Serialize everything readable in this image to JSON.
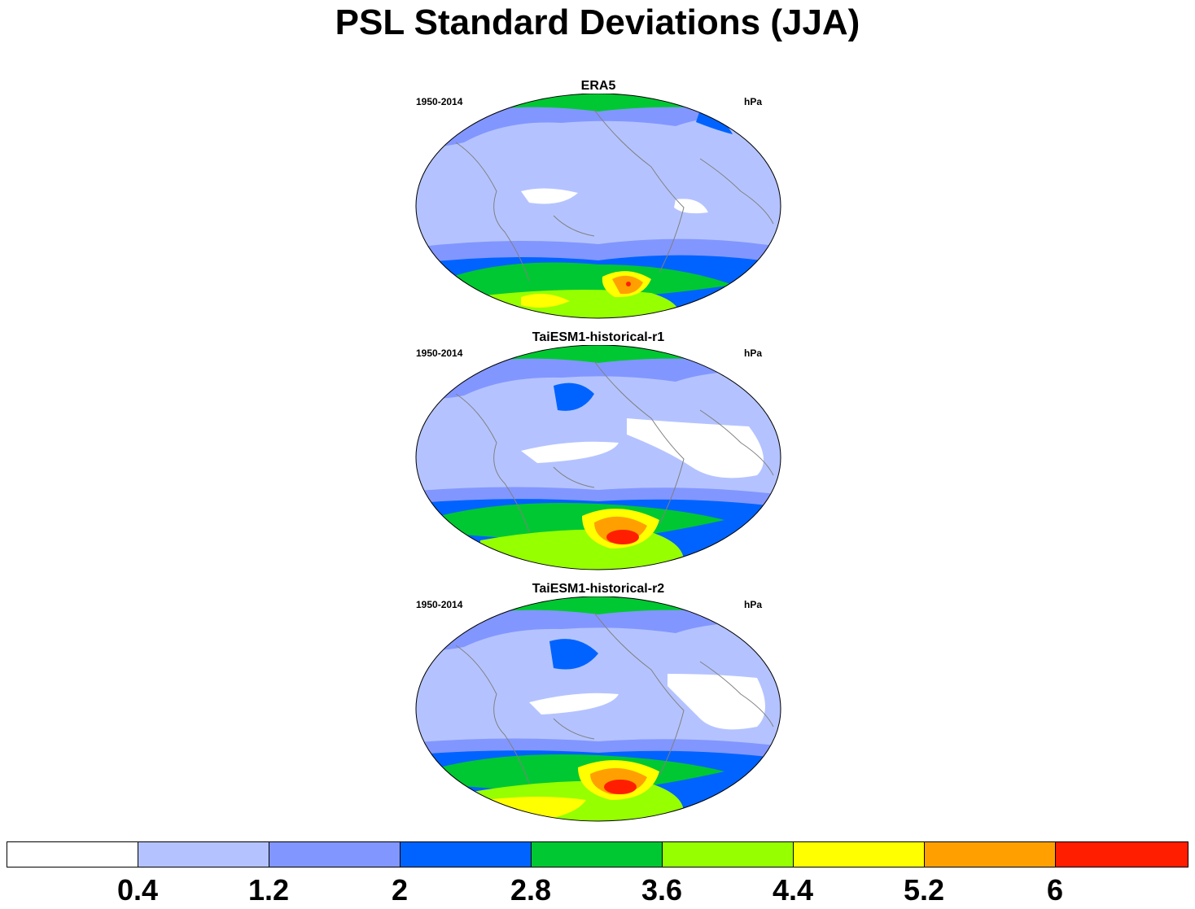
{
  "title": "PSL Standard Deviations (JJA)",
  "panels": [
    {
      "title": "ERA5",
      "left": "1950-2014",
      "right": "hPa"
    },
    {
      "title": "TaiESM1-historical-r1",
      "left": "1950-2014",
      "right": "hPa"
    },
    {
      "title": "TaiESM1-historical-r2",
      "left": "1950-2014",
      "right": "hPa"
    }
  ],
  "colorbar": {
    "labels": [
      "0.4",
      "1.2",
      "2",
      "2.8",
      "3.6",
      "4.4",
      "5.2",
      "6"
    ],
    "colors": [
      "#ffffff",
      "#b4c3ff",
      "#8296ff",
      "#0063ff",
      "#00c832",
      "#96ff00",
      "#ffff00",
      "#ffa000",
      "#ff1e00"
    ]
  }
}
